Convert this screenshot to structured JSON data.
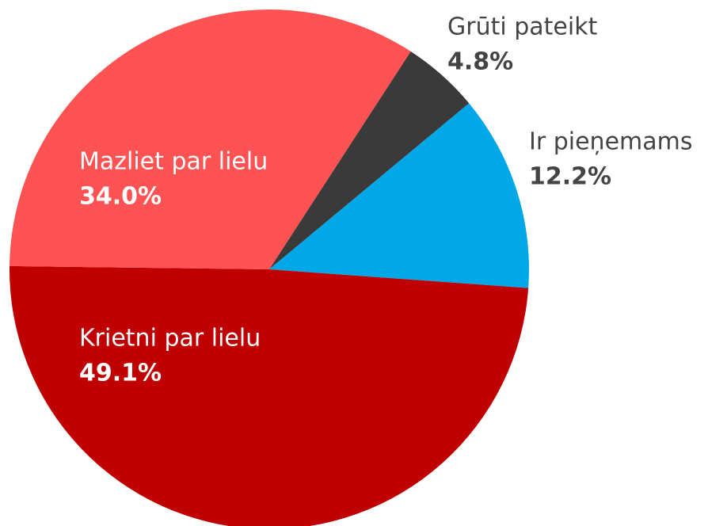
{
  "chart_data": {
    "type": "pie",
    "categories": [
      "Grūti pateikt",
      "Ir pieņemams",
      "Krietni par lielu",
      "Mazliet par lielu"
    ],
    "values": [
      4.8,
      12.2,
      49.1,
      34.0
    ],
    "value_labels": [
      "4.8%",
      "12.2%",
      "49.1%",
      "34.0%"
    ],
    "colors": [
      "#3a3a3a",
      "#00a8e8",
      "#c00000",
      "#ff5252"
    ]
  }
}
